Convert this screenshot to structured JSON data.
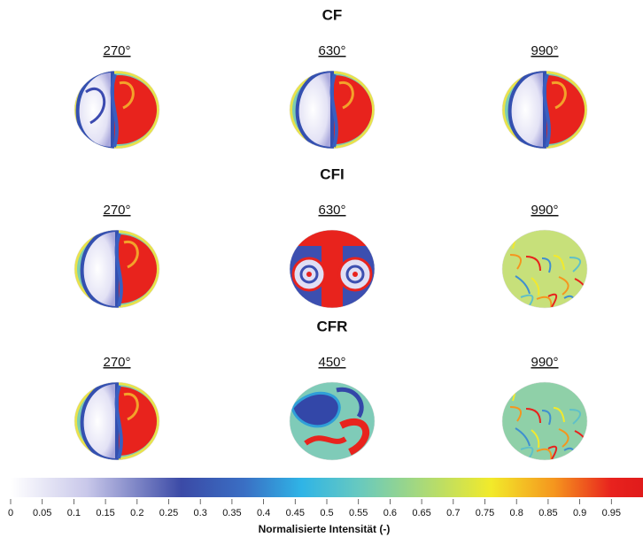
{
  "sections": [
    {
      "title": "CF",
      "panels": [
        {
          "label": "270°"
        },
        {
          "label": "630°"
        },
        {
          "label": "990°"
        }
      ]
    },
    {
      "title": "CFI",
      "panels": [
        {
          "label": "270°"
        },
        {
          "label": "630°"
        },
        {
          "label": "990°"
        }
      ]
    },
    {
      "title": "CFR",
      "panels": [
        {
          "label": "270°"
        },
        {
          "label": "450°"
        },
        {
          "label": "990°"
        }
      ]
    }
  ],
  "colorbar": {
    "title": "Normalisierte Intensität (-)",
    "lim": [
      0,
      1
    ],
    "ticks": [
      0,
      0.05,
      0.1,
      0.15,
      0.2,
      0.25,
      0.3,
      0.35,
      0.4,
      0.45,
      0.5,
      0.55,
      0.6,
      0.65,
      0.7,
      0.75,
      0.8,
      0.85,
      0.9,
      0.95
    ]
  }
}
